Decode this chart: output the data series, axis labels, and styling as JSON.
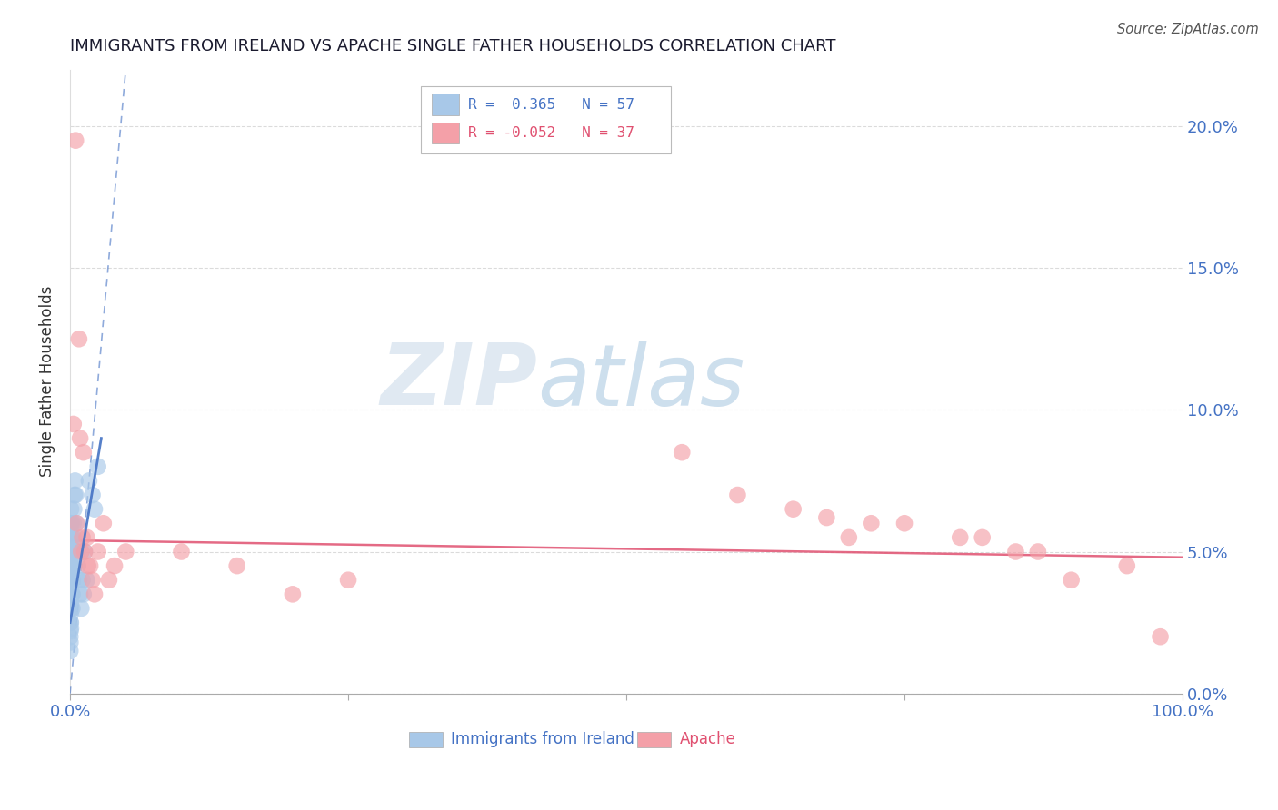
{
  "title": "IMMIGRANTS FROM IRELAND VS APACHE SINGLE FATHER HOUSEHOLDS CORRELATION CHART",
  "source": "Source: ZipAtlas.com",
  "ylabel": "Single Father Households",
  "watermark_zip": "ZIP",
  "watermark_atlas": "atlas",
  "legend_blue_r": "0.365",
  "legend_blue_n": "57",
  "legend_pink_r": "-0.052",
  "legend_pink_n": "37",
  "legend_blue_label": "Immigrants from Ireland",
  "legend_pink_label": "Apache",
  "xlim": [
    0.0,
    100.0
  ],
  "ylim": [
    0.0,
    22.0
  ],
  "yticks": [
    0.0,
    5.0,
    10.0,
    15.0,
    20.0
  ],
  "blue_color": "#a8c8e8",
  "blue_line_color": "#4472c4",
  "pink_color": "#f4a0a8",
  "pink_line_color": "#e05070",
  "title_color": "#1a1a2e",
  "axis_label_color": "#4472c4",
  "right_label_color": "#4472c4",
  "background_color": "#ffffff",
  "blue_scatter_x": [
    0.02,
    0.03,
    0.04,
    0.05,
    0.06,
    0.07,
    0.08,
    0.09,
    0.1,
    0.11,
    0.12,
    0.13,
    0.14,
    0.15,
    0.16,
    0.17,
    0.18,
    0.19,
    0.2,
    0.22,
    0.24,
    0.26,
    0.28,
    0.3,
    0.35,
    0.4,
    0.45,
    0.5,
    0.55,
    0.6,
    0.65,
    0.7,
    0.8,
    0.9,
    1.0,
    1.1,
    1.2,
    1.3,
    1.5,
    1.7,
    2.0,
    2.2,
    2.5,
    0.01,
    0.01,
    0.02,
    0.02,
    0.03,
    0.03,
    0.04,
    0.04,
    0.05,
    0.05,
    0.06,
    0.06,
    0.07,
    0.07
  ],
  "blue_scatter_y": [
    3.5,
    4.0,
    5.0,
    4.5,
    5.5,
    6.0,
    6.5,
    5.0,
    4.5,
    4.0,
    5.5,
    6.0,
    5.5,
    5.0,
    4.5,
    4.0,
    3.5,
    3.0,
    3.5,
    4.0,
    4.5,
    5.0,
    5.5,
    6.0,
    6.5,
    7.0,
    7.5,
    7.0,
    6.0,
    5.5,
    5.0,
    4.5,
    4.0,
    3.5,
    3.0,
    4.0,
    3.5,
    5.0,
    4.0,
    7.5,
    7.0,
    6.5,
    8.0,
    2.0,
    1.5,
    2.5,
    1.8,
    3.0,
    2.2,
    3.5,
    2.8,
    4.0,
    3.2,
    4.5,
    2.5,
    3.8,
    2.3
  ],
  "pink_scatter_x": [
    0.5,
    0.8,
    0.9,
    1.0,
    1.2,
    1.5,
    1.8,
    2.0,
    2.5,
    3.0,
    3.5,
    5.0,
    10.0,
    55.0,
    60.0,
    65.0,
    68.0,
    70.0,
    72.0,
    75.0,
    80.0,
    82.0,
    85.0,
    87.0,
    90.0,
    95.0,
    98.0,
    1.1,
    1.3,
    1.6,
    0.3,
    0.6,
    2.2,
    4.0,
    15.0,
    20.0,
    25.0
  ],
  "pink_scatter_y": [
    19.5,
    12.5,
    9.0,
    5.0,
    8.5,
    5.5,
    4.5,
    4.0,
    5.0,
    6.0,
    4.0,
    5.0,
    5.0,
    8.5,
    7.0,
    6.5,
    6.2,
    5.5,
    6.0,
    6.0,
    5.5,
    5.5,
    5.0,
    5.0,
    4.0,
    4.5,
    2.0,
    5.5,
    5.0,
    4.5,
    9.5,
    6.0,
    3.5,
    4.5,
    4.5,
    3.5,
    4.0
  ],
  "blue_dash_line_x": [
    0.0,
    5.0
  ],
  "blue_dash_line_y": [
    0.0,
    22.0
  ],
  "blue_solid_line_x": [
    0.0,
    2.8
  ],
  "blue_solid_line_y": [
    2.5,
    9.0
  ],
  "pink_line_x": [
    0.0,
    100.0
  ],
  "pink_line_y": [
    5.4,
    4.8
  ]
}
